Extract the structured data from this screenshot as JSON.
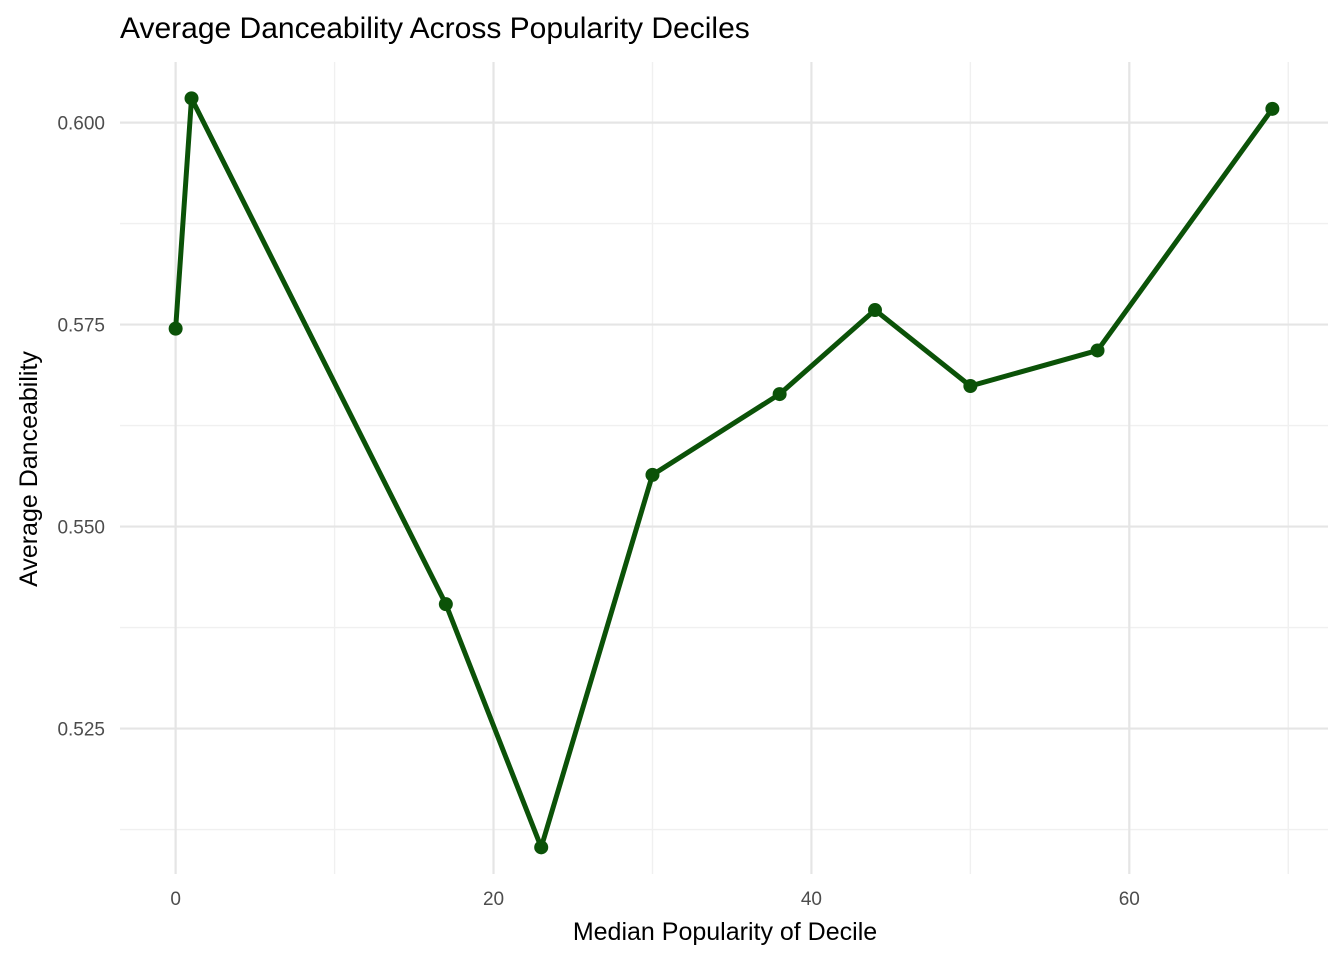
{
  "chart_data": {
    "type": "line",
    "title": "Average Danceability Across Popularity Deciles",
    "xlabel": "Median Popularity of Decile",
    "ylabel": "Average Danceability",
    "xlim": [
      -3.5,
      72.5
    ],
    "ylim": [
      0.507,
      0.6075
    ],
    "x_ticks": [
      0,
      20,
      40,
      60
    ],
    "x_tick_labels": [
      "0",
      "20",
      "40",
      "60"
    ],
    "y_ticks": [
      0.525,
      0.55,
      0.575,
      0.6
    ],
    "y_tick_labels": [
      "0.525",
      "0.550",
      "0.575",
      "0.600"
    ],
    "grid": true,
    "legend": "none",
    "series": [
      {
        "color": "#0b5208",
        "x": [
          0,
          1,
          17,
          23,
          30,
          38,
          44,
          50,
          58,
          69
        ],
        "y": [
          0.5745,
          0.603,
          0.5404,
          0.5103,
          0.5564,
          0.5664,
          0.5768,
          0.5674,
          0.5718,
          0.6017
        ]
      }
    ]
  }
}
